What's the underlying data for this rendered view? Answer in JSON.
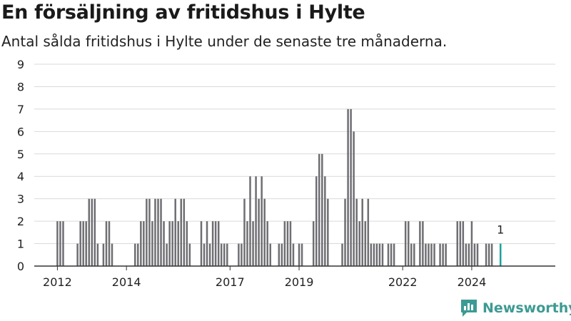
{
  "title": "En försäljning av fritidshus i Hylte",
  "subtitle": "Antal sålda fritidshus i Hylte under de senaste tre månaderna.",
  "brand": {
    "name": "Newsworthy",
    "color": "#3d9a93"
  },
  "colors": {
    "bar": "#6e6e73",
    "highlight": "#1aa39a",
    "grid": "#d9d9d9",
    "axis": "#333333"
  },
  "chart_data": {
    "type": "bar",
    "ylim": [
      0,
      9
    ],
    "yticks": [
      0,
      1,
      2,
      3,
      4,
      5,
      6,
      7,
      8,
      9
    ],
    "grid": "horizontal",
    "x_range": [
      2011.33,
      2026.42
    ],
    "xticks": [
      {
        "label": "2012",
        "x": 2012.0
      },
      {
        "label": "2014",
        "x": 2014.0
      },
      {
        "label": "2017",
        "x": 2017.0
      },
      {
        "label": "2019",
        "x": 2019.0
      },
      {
        "label": "2022",
        "x": 2022.0
      },
      {
        "label": "2024",
        "x": 2024.0
      }
    ],
    "highlight_label": "1",
    "series": [
      {
        "values": [
          {
            "x": 2012.0,
            "y": 2
          },
          {
            "x": 2012.083,
            "y": 2
          },
          {
            "x": 2012.167,
            "y": 2
          },
          {
            "x": 2012.583,
            "y": 1
          },
          {
            "x": 2012.667,
            "y": 2
          },
          {
            "x": 2012.75,
            "y": 2
          },
          {
            "x": 2012.833,
            "y": 2
          },
          {
            "x": 2012.917,
            "y": 3
          },
          {
            "x": 2013.0,
            "y": 3
          },
          {
            "x": 2013.083,
            "y": 3
          },
          {
            "x": 2013.167,
            "y": 1
          },
          {
            "x": 2013.333,
            "y": 1
          },
          {
            "x": 2013.417,
            "y": 2
          },
          {
            "x": 2013.5,
            "y": 2
          },
          {
            "x": 2013.583,
            "y": 1
          },
          {
            "x": 2014.25,
            "y": 1
          },
          {
            "x": 2014.333,
            "y": 1
          },
          {
            "x": 2014.417,
            "y": 2
          },
          {
            "x": 2014.5,
            "y": 2
          },
          {
            "x": 2014.583,
            "y": 3
          },
          {
            "x": 2014.667,
            "y": 3
          },
          {
            "x": 2014.75,
            "y": 2
          },
          {
            "x": 2014.833,
            "y": 3
          },
          {
            "x": 2014.917,
            "y": 3
          },
          {
            "x": 2015.0,
            "y": 3
          },
          {
            "x": 2015.083,
            "y": 2
          },
          {
            "x": 2015.167,
            "y": 1
          },
          {
            "x": 2015.25,
            "y": 2
          },
          {
            "x": 2015.333,
            "y": 2
          },
          {
            "x": 2015.417,
            "y": 3
          },
          {
            "x": 2015.5,
            "y": 2
          },
          {
            "x": 2015.583,
            "y": 3
          },
          {
            "x": 2015.667,
            "y": 3
          },
          {
            "x": 2015.75,
            "y": 2
          },
          {
            "x": 2015.833,
            "y": 1
          },
          {
            "x": 2016.167,
            "y": 2
          },
          {
            "x": 2016.25,
            "y": 1
          },
          {
            "x": 2016.333,
            "y": 2
          },
          {
            "x": 2016.417,
            "y": 1
          },
          {
            "x": 2016.5,
            "y": 2
          },
          {
            "x": 2016.583,
            "y": 2
          },
          {
            "x": 2016.667,
            "y": 2
          },
          {
            "x": 2016.75,
            "y": 1
          },
          {
            "x": 2016.833,
            "y": 1
          },
          {
            "x": 2016.917,
            "y": 1
          },
          {
            "x": 2017.25,
            "y": 1
          },
          {
            "x": 2017.333,
            "y": 1
          },
          {
            "x": 2017.417,
            "y": 3
          },
          {
            "x": 2017.5,
            "y": 2
          },
          {
            "x": 2017.583,
            "y": 4
          },
          {
            "x": 2017.667,
            "y": 2
          },
          {
            "x": 2017.75,
            "y": 4
          },
          {
            "x": 2017.833,
            "y": 3
          },
          {
            "x": 2017.917,
            "y": 4
          },
          {
            "x": 2018.0,
            "y": 3
          },
          {
            "x": 2018.083,
            "y": 2
          },
          {
            "x": 2018.167,
            "y": 1
          },
          {
            "x": 2018.417,
            "y": 1
          },
          {
            "x": 2018.5,
            "y": 1
          },
          {
            "x": 2018.583,
            "y": 2
          },
          {
            "x": 2018.667,
            "y": 2
          },
          {
            "x": 2018.75,
            "y": 2
          },
          {
            "x": 2018.833,
            "y": 1
          },
          {
            "x": 2019.0,
            "y": 1
          },
          {
            "x": 2019.083,
            "y": 1
          },
          {
            "x": 2019.417,
            "y": 2
          },
          {
            "x": 2019.5,
            "y": 4
          },
          {
            "x": 2019.583,
            "y": 5
          },
          {
            "x": 2019.667,
            "y": 5
          },
          {
            "x": 2019.75,
            "y": 4
          },
          {
            "x": 2019.833,
            "y": 3
          },
          {
            "x": 2020.25,
            "y": 1
          },
          {
            "x": 2020.333,
            "y": 3
          },
          {
            "x": 2020.417,
            "y": 7
          },
          {
            "x": 2020.5,
            "y": 7
          },
          {
            "x": 2020.583,
            "y": 6
          },
          {
            "x": 2020.667,
            "y": 3
          },
          {
            "x": 2020.75,
            "y": 2
          },
          {
            "x": 2020.833,
            "y": 3
          },
          {
            "x": 2020.917,
            "y": 2
          },
          {
            "x": 2021.0,
            "y": 3
          },
          {
            "x": 2021.083,
            "y": 1
          },
          {
            "x": 2021.167,
            "y": 1
          },
          {
            "x": 2021.25,
            "y": 1
          },
          {
            "x": 2021.333,
            "y": 1
          },
          {
            "x": 2021.417,
            "y": 1
          },
          {
            "x": 2021.583,
            "y": 1
          },
          {
            "x": 2021.667,
            "y": 1
          },
          {
            "x": 2021.75,
            "y": 1
          },
          {
            "x": 2022.083,
            "y": 2
          },
          {
            "x": 2022.167,
            "y": 2
          },
          {
            "x": 2022.25,
            "y": 1
          },
          {
            "x": 2022.333,
            "y": 1
          },
          {
            "x": 2022.5,
            "y": 2
          },
          {
            "x": 2022.583,
            "y": 2
          },
          {
            "x": 2022.667,
            "y": 1
          },
          {
            "x": 2022.75,
            "y": 1
          },
          {
            "x": 2022.833,
            "y": 1
          },
          {
            "x": 2022.917,
            "y": 1
          },
          {
            "x": 2023.083,
            "y": 1
          },
          {
            "x": 2023.167,
            "y": 1
          },
          {
            "x": 2023.25,
            "y": 1
          },
          {
            "x": 2023.583,
            "y": 2
          },
          {
            "x": 2023.667,
            "y": 2
          },
          {
            "x": 2023.75,
            "y": 2
          },
          {
            "x": 2023.833,
            "y": 1
          },
          {
            "x": 2023.917,
            "y": 1
          },
          {
            "x": 2024.0,
            "y": 2
          },
          {
            "x": 2024.083,
            "y": 1
          },
          {
            "x": 2024.167,
            "y": 1
          },
          {
            "x": 2024.417,
            "y": 1
          },
          {
            "x": 2024.5,
            "y": 1
          },
          {
            "x": 2024.583,
            "y": 1
          },
          {
            "x": 2024.833,
            "y": 1,
            "highlight": true
          }
        ]
      }
    ]
  }
}
